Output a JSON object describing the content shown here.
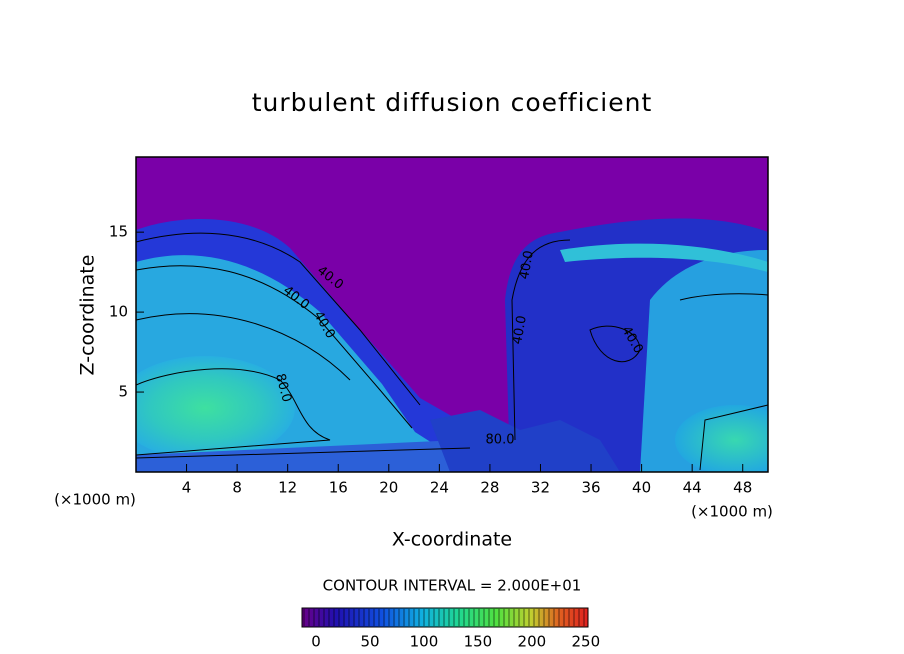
{
  "chart_data": {
    "type": "contour",
    "title": "turbulent diffusion coefficient",
    "x_label": "X-coordinate",
    "y_label": "Z-coordinate",
    "x_unit_labels": [
      "(×1000 m)",
      "(×1000 m)"
    ],
    "xlim": [
      0,
      50
    ],
    "ylim": [
      0,
      19.7
    ],
    "xticks": [
      4,
      8,
      12,
      16,
      20,
      24,
      28,
      32,
      36,
      40,
      44,
      48
    ],
    "yticks": [
      5,
      10,
      15
    ],
    "contour_labels": [
      "40.0",
      "40.0",
      "40.0",
      "80.0",
      "80.0",
      "40.0",
      "40.0",
      "40.0"
    ],
    "contour_interval": "CONTOUR INTERVAL = 2.000E+01",
    "colorbar_lim": [
      -13,
      252
    ],
    "colorbar_ticks": [
      0,
      50,
      100,
      150,
      200,
      250
    ]
  }
}
